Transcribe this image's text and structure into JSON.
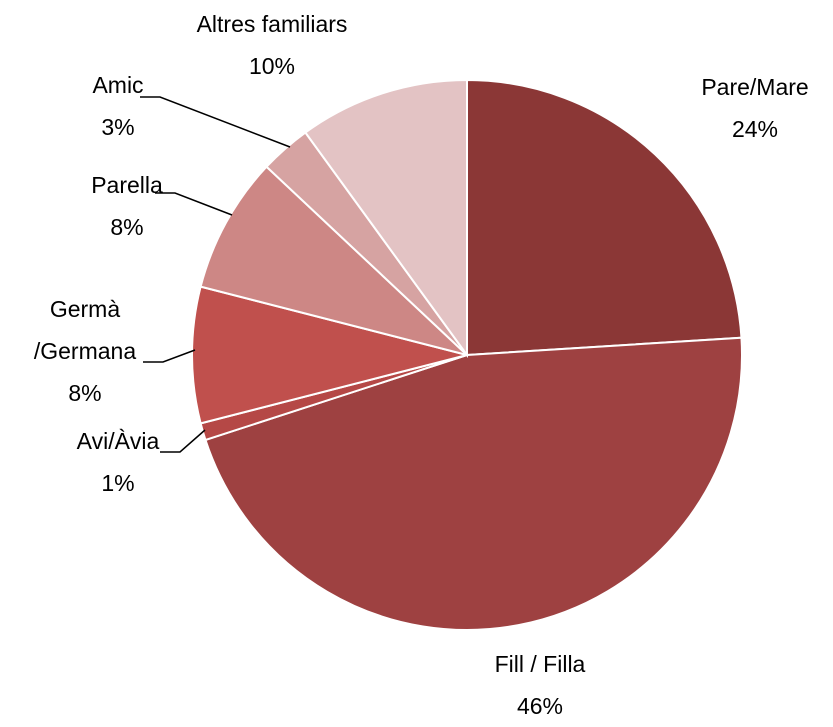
{
  "chart_data": {
    "type": "pie",
    "categories": [
      "Pare/Mare",
      "Fill / Filla",
      "Avi/Àvia",
      "Germà /Germana",
      "Parella",
      "Amic",
      "Altres familiars"
    ],
    "values": [
      24,
      46,
      1,
      8,
      8,
      3,
      10
    ],
    "value_labels": [
      "24%",
      "46%",
      "1%",
      "8%",
      "8%",
      "3%",
      "10%"
    ],
    "colors": [
      "#8b3736",
      "#9e4141",
      "#b54846",
      "#c0504d",
      "#cd8785",
      "#d6a3a2",
      "#e3c3c4"
    ]
  }
}
